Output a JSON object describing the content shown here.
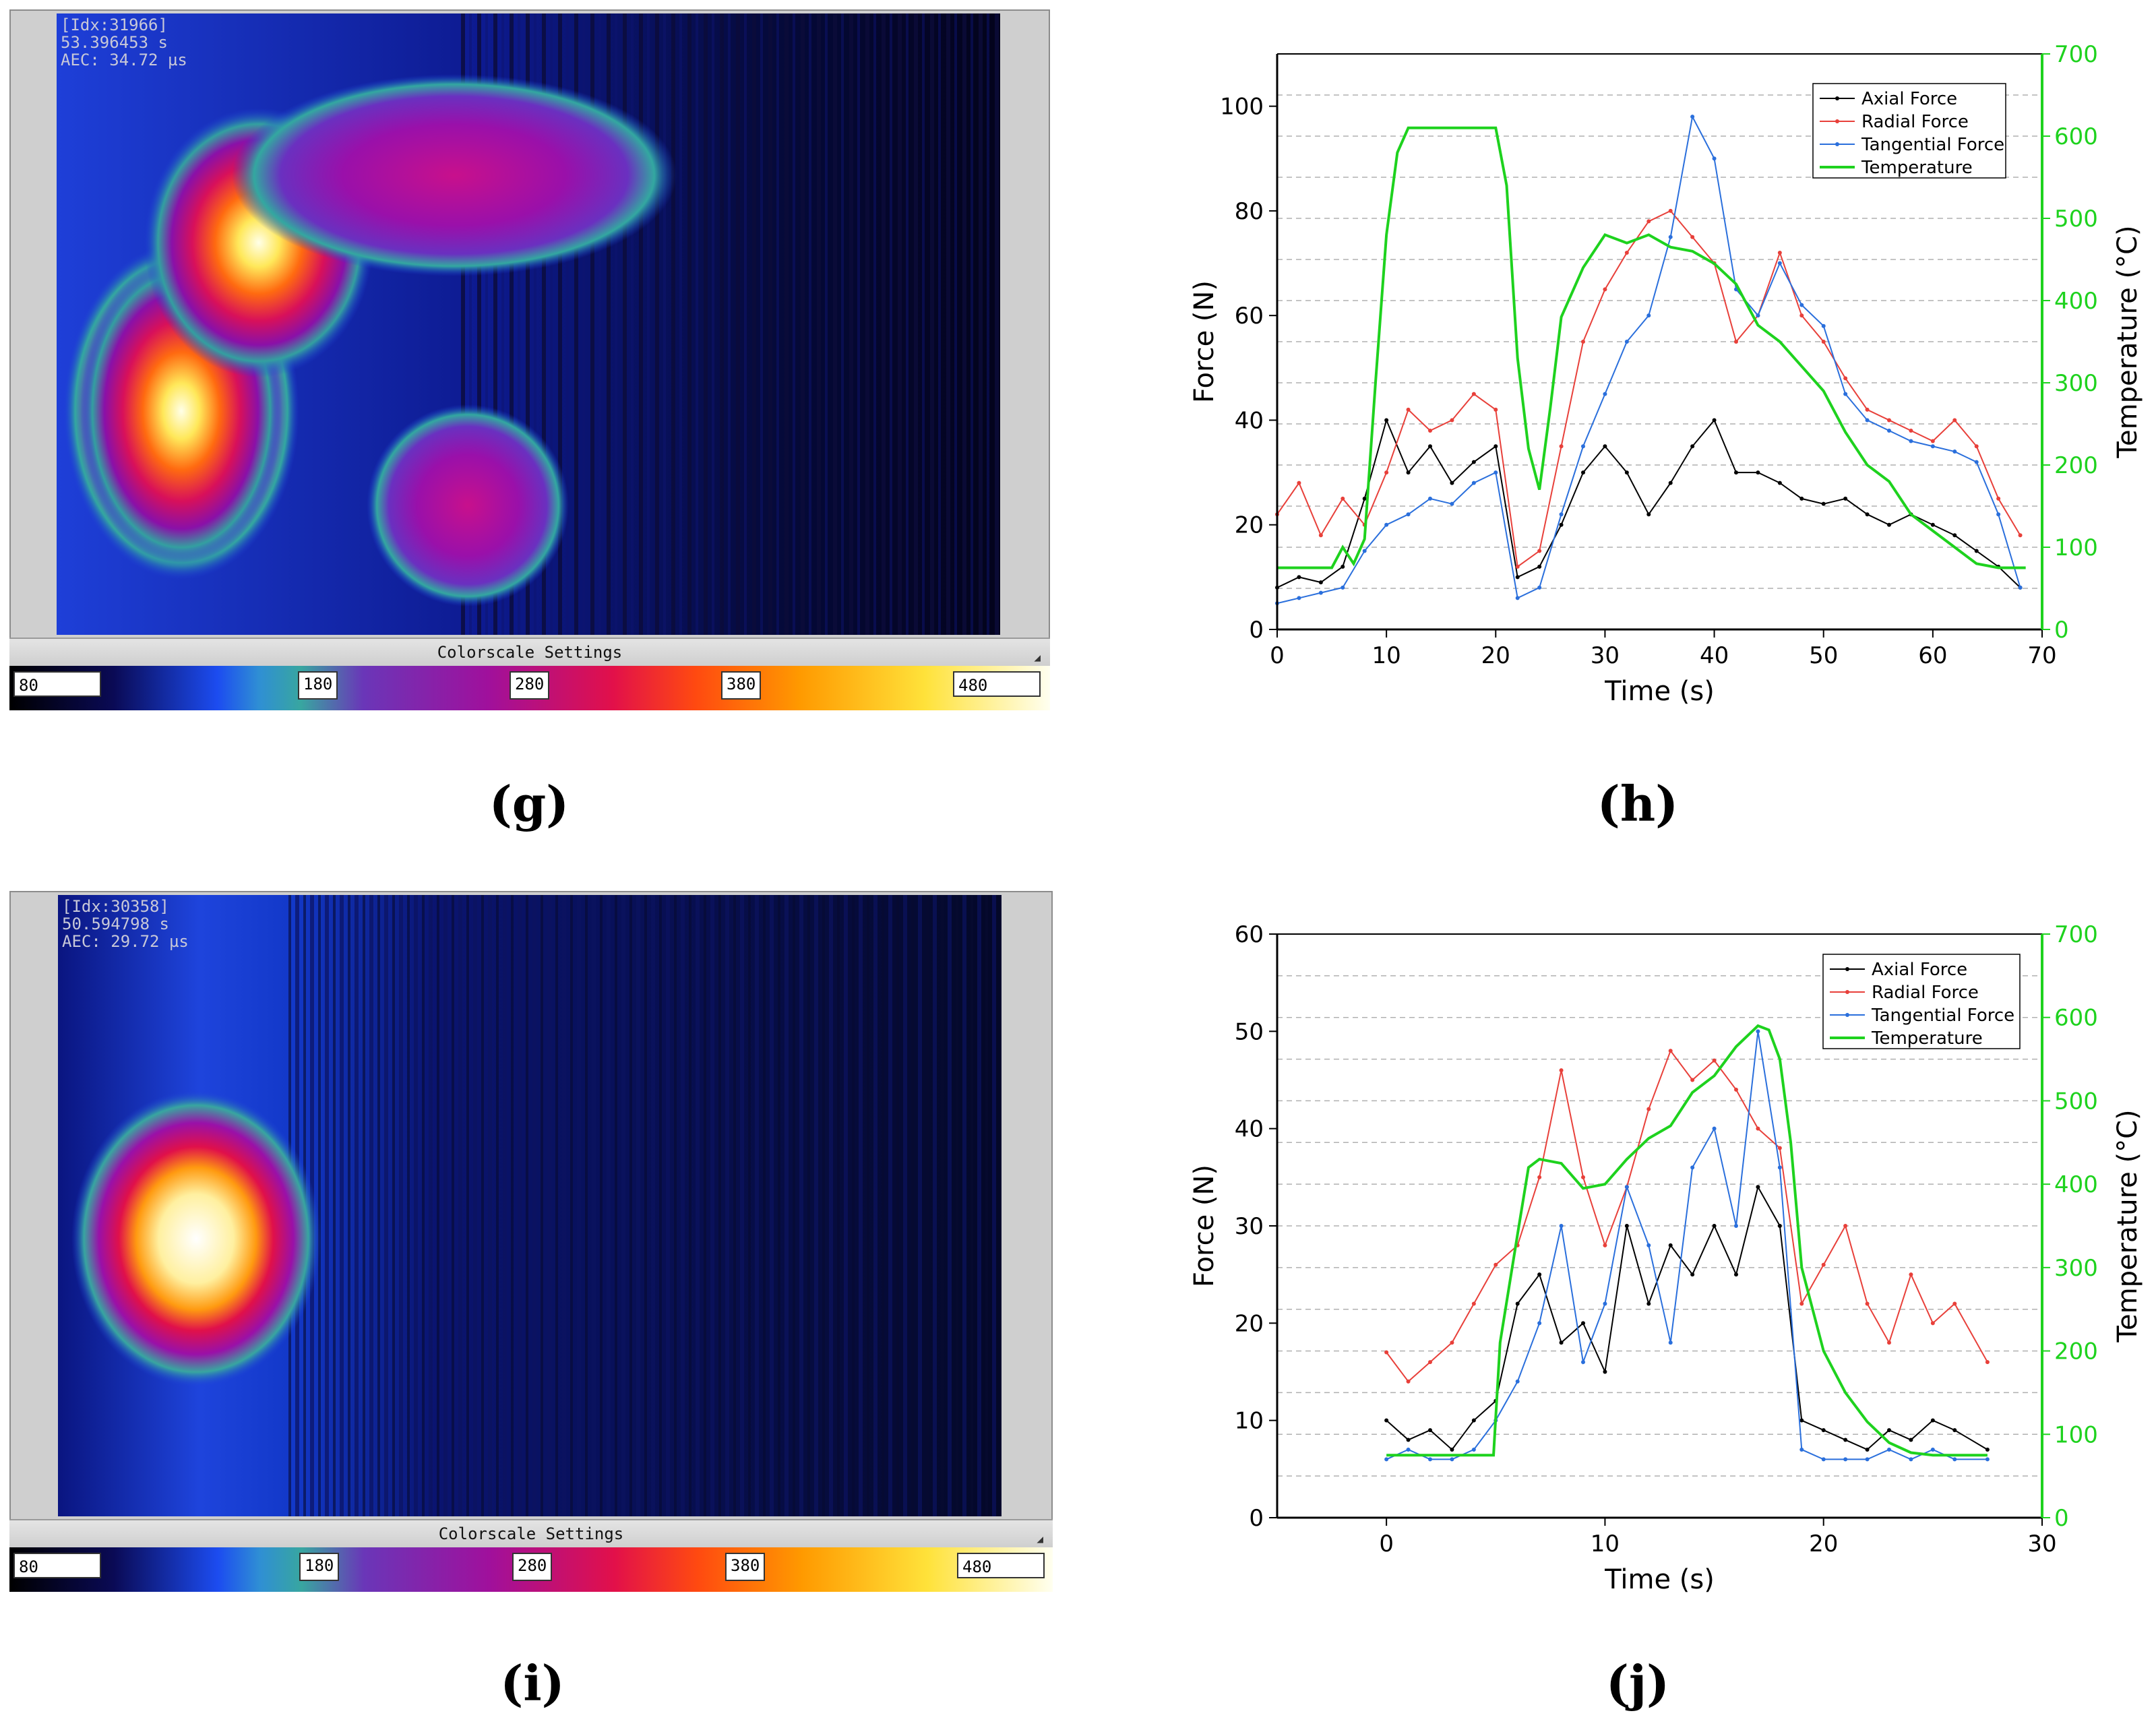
{
  "panels": {
    "g": {
      "label": "(g)",
      "hud": [
        "[Idx:31966]",
        "53.396453 s",
        "AEC: 34.72 µs"
      ],
      "colorscale_title": "Colorscale Settings",
      "scale": {
        "min": "80",
        "ticks": [
          "180",
          "280",
          "380"
        ],
        "max": "480"
      }
    },
    "i": {
      "label": "(i)",
      "hud": [
        "[Idx:30358]",
        "50.594798 s",
        "AEC: 29.72 µs"
      ],
      "colorscale_title": "Colorscale Settings",
      "scale": {
        "min": "80",
        "ticks": [
          "180",
          "280",
          "380"
        ],
        "max": "480"
      }
    },
    "h": {
      "label": "(h)"
    },
    "j": {
      "label": "(j)"
    }
  },
  "colors": {
    "axial": "#000000",
    "radial": "#e8403a",
    "tangential": "#2a6fdc",
    "temperature": "#1ed21e"
  },
  "chart_data": [
    {
      "id": "h",
      "type": "line",
      "xlabel": "Time (s)",
      "ylabel": "Force (N)",
      "y2label": "Temperature (°C)",
      "xlim": [
        0,
        70
      ],
      "ylim": [
        0,
        110
      ],
      "y2lim": [
        0,
        700
      ],
      "xticks": [
        0,
        10,
        20,
        30,
        40,
        50,
        60,
        70
      ],
      "yticks": [
        0,
        20,
        40,
        60,
        80,
        100
      ],
      "y2ticks": [
        0,
        100,
        200,
        300,
        400,
        500,
        600,
        700
      ],
      "legend": [
        "Axial Force",
        "Radial Force",
        "Tangential Force",
        "Temperature"
      ],
      "series": [
        {
          "name": "Axial Force",
          "axis": "left",
          "x": [
            0,
            2,
            4,
            6,
            8,
            10,
            12,
            14,
            16,
            18,
            20,
            22,
            24,
            26,
            28,
            30,
            32,
            34,
            36,
            38,
            40,
            42,
            44,
            46,
            48,
            50,
            52,
            54,
            56,
            58,
            60,
            62,
            64,
            66,
            68
          ],
          "values": [
            8,
            10,
            9,
            12,
            25,
            40,
            30,
            35,
            28,
            32,
            35,
            10,
            12,
            20,
            30,
            35,
            30,
            22,
            28,
            35,
            40,
            30,
            30,
            28,
            25,
            24,
            25,
            22,
            20,
            22,
            20,
            18,
            15,
            12,
            8
          ]
        },
        {
          "name": "Radial Force",
          "axis": "left",
          "x": [
            0,
            2,
            4,
            6,
            8,
            10,
            12,
            14,
            16,
            18,
            20,
            22,
            24,
            26,
            28,
            30,
            32,
            34,
            36,
            38,
            40,
            42,
            44,
            46,
            48,
            50,
            52,
            54,
            56,
            58,
            60,
            62,
            64,
            66,
            68
          ],
          "values": [
            22,
            28,
            18,
            25,
            20,
            30,
            42,
            38,
            40,
            45,
            42,
            12,
            15,
            35,
            55,
            65,
            72,
            78,
            80,
            75,
            70,
            55,
            60,
            72,
            60,
            55,
            48,
            42,
            40,
            38,
            36,
            40,
            35,
            25,
            18
          ]
        },
        {
          "name": "Tangential Force",
          "axis": "left",
          "x": [
            0,
            2,
            4,
            6,
            8,
            10,
            12,
            14,
            16,
            18,
            20,
            22,
            24,
            26,
            28,
            30,
            32,
            34,
            36,
            38,
            40,
            42,
            44,
            46,
            48,
            50,
            52,
            54,
            56,
            58,
            60,
            62,
            64,
            66,
            68
          ],
          "values": [
            5,
            6,
            7,
            8,
            15,
            20,
            22,
            25,
            24,
            28,
            30,
            6,
            8,
            22,
            35,
            45,
            55,
            60,
            75,
            98,
            90,
            65,
            60,
            70,
            62,
            58,
            45,
            40,
            38,
            36,
            35,
            34,
            32,
            22,
            8
          ]
        },
        {
          "name": "Temperature",
          "axis": "right",
          "x": [
            0,
            3,
            5,
            6,
            7,
            8,
            9,
            10,
            11,
            12,
            14,
            16,
            18,
            20,
            21,
            22,
            23,
            24,
            25,
            26,
            28,
            30,
            32,
            34,
            36,
            38,
            40,
            42,
            44,
            46,
            48,
            50,
            52,
            54,
            56,
            58,
            60,
            62,
            64,
            66,
            68.5
          ],
          "values": [
            75,
            75,
            75,
            100,
            80,
            110,
            300,
            480,
            580,
            610,
            610,
            610,
            610,
            610,
            540,
            330,
            220,
            170,
            270,
            380,
            440,
            480,
            470,
            480,
            465,
            460,
            445,
            420,
            370,
            350,
            320,
            290,
            240,
            200,
            180,
            140,
            120,
            100,
            80,
            75,
            75
          ]
        }
      ]
    },
    {
      "id": "j",
      "type": "line",
      "xlabel": "Time (s)",
      "ylabel": "Force (N)",
      "y2label": "Temperature (°C)",
      "xlim": [
        -5,
        30
      ],
      "ylim": [
        0,
        60
      ],
      "y2lim": [
        0,
        700
      ],
      "xticks": [
        0,
        10,
        20,
        30
      ],
      "yticks": [
        0,
        10,
        20,
        30,
        40,
        50,
        60
      ],
      "y2ticks": [
        0,
        100,
        200,
        300,
        400,
        500,
        600,
        700
      ],
      "legend": [
        "Axial Force",
        "Radial Force",
        "Tangential Force",
        "Temperature"
      ],
      "series": [
        {
          "name": "Axial Force",
          "axis": "left",
          "x": [
            0,
            1,
            2,
            3,
            4,
            5,
            6,
            7,
            8,
            9,
            10,
            11,
            12,
            13,
            14,
            15,
            16,
            17,
            18,
            19,
            20,
            21,
            22,
            23,
            24,
            25,
            26,
            27.5
          ],
          "values": [
            10,
            8,
            9,
            7,
            10,
            12,
            22,
            25,
            18,
            20,
            15,
            30,
            22,
            28,
            25,
            30,
            25,
            34,
            30,
            10,
            9,
            8,
            7,
            9,
            8,
            10,
            9,
            7
          ]
        },
        {
          "name": "Radial Force",
          "axis": "left",
          "x": [
            0,
            1,
            2,
            3,
            4,
            5,
            6,
            7,
            8,
            9,
            10,
            11,
            12,
            13,
            14,
            15,
            16,
            17,
            18,
            19,
            20,
            21,
            22,
            23,
            24,
            25,
            26,
            27.5
          ],
          "values": [
            17,
            14,
            16,
            18,
            22,
            26,
            28,
            35,
            46,
            35,
            28,
            34,
            42,
            48,
            45,
            47,
            44,
            40,
            38,
            22,
            26,
            30,
            22,
            18,
            25,
            20,
            22,
            16
          ]
        },
        {
          "name": "Tangential Force",
          "axis": "left",
          "x": [
            0,
            1,
            2,
            3,
            4,
            5,
            6,
            7,
            8,
            9,
            10,
            11,
            12,
            13,
            14,
            15,
            16,
            17,
            18,
            19,
            20,
            21,
            22,
            23,
            24,
            25,
            26,
            27.5
          ],
          "values": [
            6,
            7,
            6,
            6,
            7,
            10,
            14,
            20,
            30,
            16,
            22,
            34,
            28,
            18,
            36,
            40,
            30,
            50,
            36,
            7,
            6,
            6,
            6,
            7,
            6,
            7,
            6,
            6
          ]
        },
        {
          "name": "Temperature",
          "axis": "right",
          "x": [
            0,
            1,
            2,
            3,
            4,
            4.9,
            5.2,
            6,
            6.5,
            7,
            8,
            9,
            10,
            11,
            12,
            13,
            14,
            15,
            16,
            17,
            17.5,
            18,
            18.5,
            19,
            20,
            21,
            22,
            23,
            24,
            25,
            26,
            27.5
          ],
          "values": [
            75,
            75,
            75,
            75,
            75,
            75,
            210,
            340,
            420,
            430,
            425,
            395,
            400,
            430,
            455,
            470,
            510,
            530,
            565,
            590,
            585,
            550,
            450,
            300,
            200,
            150,
            115,
            90,
            78,
            75,
            75,
            75
          ]
        }
      ]
    }
  ]
}
